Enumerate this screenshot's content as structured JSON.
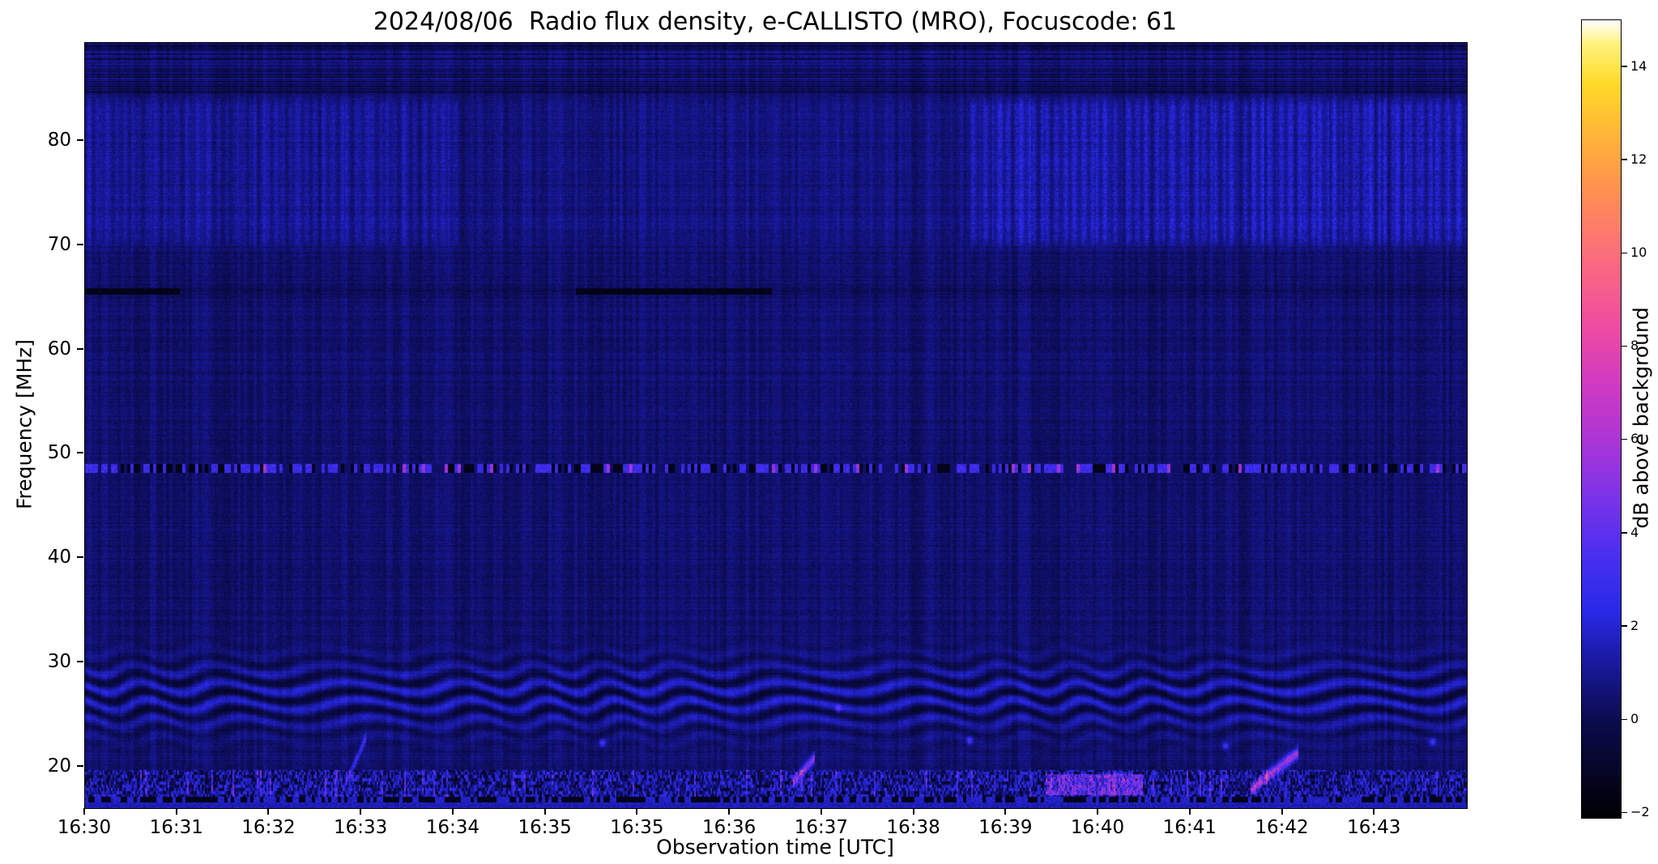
{
  "chart_data": {
    "type": "heatmap",
    "title": "2024/08/06  Radio flux density, e-CALLISTO (MRO), Focuscode: 61",
    "xlabel": "Observation time [UTC]",
    "ylabel": "Frequency [MHz]",
    "colorbar_label": "dB above background",
    "x_ticks": [
      "16:30",
      "16:31",
      "16:32",
      "16:33",
      "16:34",
      "16:35",
      "16:35",
      "16:36",
      "16:37",
      "16:38",
      "16:39",
      "16:40",
      "16:41",
      "16:42",
      "16:43"
    ],
    "x_tick_count": 15,
    "y_ticks": [
      {
        "value": 20,
        "label": "20"
      },
      {
        "value": 30,
        "label": "30"
      },
      {
        "value": 40,
        "label": "40"
      },
      {
        "value": 50,
        "label": "50"
      },
      {
        "value": 60,
        "label": "60"
      },
      {
        "value": 70,
        "label": "70"
      },
      {
        "value": 80,
        "label": "80"
      }
    ],
    "freq_range_mhz": [
      16.0,
      89.4
    ],
    "value_range_db": [
      -2.1,
      15.0
    ],
    "colorbar_ticks": [
      {
        "value": -2,
        "label": "−2"
      },
      {
        "value": 0,
        "label": "0"
      },
      {
        "value": 2,
        "label": "2"
      },
      {
        "value": 4,
        "label": "4"
      },
      {
        "value": 6,
        "label": "6"
      },
      {
        "value": 8,
        "label": "8"
      },
      {
        "value": 10,
        "label": "10"
      },
      {
        "value": 12,
        "label": "12"
      },
      {
        "value": 14,
        "label": "14"
      }
    ],
    "colormap": [
      {
        "t": 0.0,
        "c": "#000002"
      },
      {
        "t": 0.12,
        "c": "#0b0b4d"
      },
      {
        "t": 0.2,
        "c": "#1a1aa5"
      },
      {
        "t": 0.26,
        "c": "#2929e8"
      },
      {
        "t": 0.33,
        "c": "#4b2ff0"
      },
      {
        "t": 0.4,
        "c": "#7a33e8"
      },
      {
        "t": 0.47,
        "c": "#a935d6"
      },
      {
        "t": 0.55,
        "c": "#d33bbf"
      },
      {
        "t": 0.62,
        "c": "#ef4da0"
      },
      {
        "t": 0.7,
        "c": "#fb6b7e"
      },
      {
        "t": 0.78,
        "c": "#ff8d55"
      },
      {
        "t": 0.85,
        "c": "#ffb13a"
      },
      {
        "t": 0.92,
        "c": "#ffd927"
      },
      {
        "t": 0.97,
        "c": "#fff27a"
      },
      {
        "t": 1.0,
        "c": "#ffffff"
      }
    ],
    "features": {
      "background_level_db": 0.45,
      "upper_band": {
        "f_lo": 69.5,
        "f_hi": 84.6,
        "segments": [
          {
            "t0": 0.0,
            "t1": 0.27,
            "amp": 0.8
          },
          {
            "t0": 0.27,
            "t1": 0.64,
            "amp": 0.35
          },
          {
            "t0": 0.64,
            "t1": 1.0,
            "amp": 1.25
          }
        ]
      },
      "dark_line": {
        "freq_mhz": 65.6,
        "half_width_mhz": 0.33,
        "depth_db": -1.7,
        "faint_depth_db": -0.35,
        "segments": [
          [
            0.0,
            0.068
          ],
          [
            0.355,
            0.497
          ]
        ]
      },
      "speckle_band": {
        "freq_mhz": 48.6,
        "half_width_mhz": 0.42
      },
      "ripples": {
        "f_center_mhz": 26.8,
        "f_sigma_mhz": 3.4,
        "wavelength_mhz": 1.7,
        "amp_db": 1.4,
        "wobble_amp_mhz": 0.52,
        "wobble_freq": 95
      },
      "noise_band": {
        "f_lo_mhz": 17.1,
        "f_hi_mhz": 19.7
      },
      "bursts": [
        {
          "t0": 0.186,
          "t1": 0.203,
          "f0": 17.6,
          "f1": 22.8,
          "width_mhz": 0.5,
          "amp_db": 3.2,
          "diffuse": false
        },
        {
          "t0": 0.512,
          "t1": 0.528,
          "f0": 18.4,
          "f1": 20.9,
          "width_mhz": 0.5,
          "amp_db": 6.0,
          "diffuse": false
        },
        {
          "t0": 0.695,
          "t1": 0.765,
          "f0": 17.3,
          "f1": 19.3,
          "width_mhz": 1.0,
          "amp_db": 4.5,
          "diffuse": true
        },
        {
          "t0": 0.843,
          "t1": 0.878,
          "f0": 17.8,
          "f1": 21.4,
          "width_mhz": 0.55,
          "amp_db": 6.5,
          "diffuse": false
        }
      ],
      "dots": [
        {
          "t": 0.374,
          "f": 22.3,
          "amp_db": 3.2
        },
        {
          "t": 0.545,
          "f": 25.6,
          "amp_db": 2.6
        },
        {
          "t": 0.64,
          "f": 22.5,
          "amp_db": 2.8
        },
        {
          "t": 0.825,
          "f": 22.0,
          "amp_db": 2.5
        },
        {
          "t": 0.975,
          "f": 22.4,
          "amp_db": 2.8
        }
      ]
    }
  }
}
